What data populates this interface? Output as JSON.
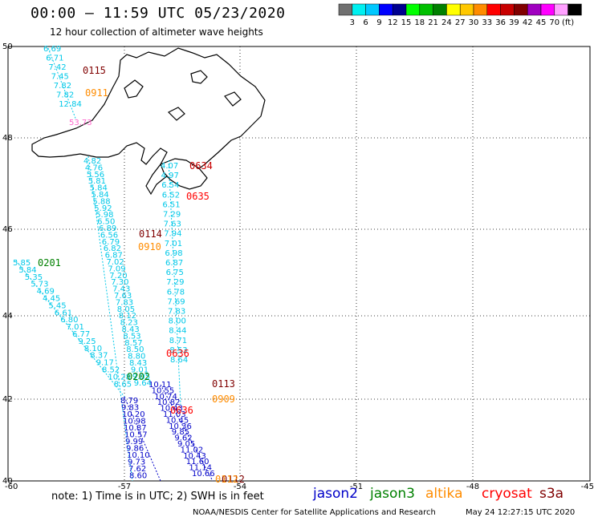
{
  "header": {
    "title": "00:00 – 11:59 UTC 05/23/2020",
    "subtitle": "12 hour collection of altimeter wave heights"
  },
  "color_scale": {
    "colors": [
      "#707070",
      "#00f0f0",
      "#00c8ff",
      "#0000ff",
      "#000090",
      "#00ff00",
      "#00c000",
      "#008000",
      "#ffff00",
      "#ffc800",
      "#ff8c00",
      "#ff0000",
      "#c80000",
      "#800000",
      "#a000c0",
      "#ff00ff",
      "#ffa0ff",
      "#000000"
    ],
    "labels": [
      "3",
      "6",
      "9",
      "12",
      "15",
      "18",
      "21",
      "24",
      "27",
      "30",
      "33",
      "36",
      "39",
      "42",
      "45",
      "70",
      "(ft)"
    ]
  },
  "axes": {
    "lat_labels": [
      "50",
      "48",
      "46",
      "44",
      "42",
      "40"
    ],
    "lon_labels": [
      "-60",
      "-57",
      "-54",
      "-51",
      "-48",
      "-45"
    ]
  },
  "passes": [
    {
      "text": "0115",
      "color": "#800000"
    },
    {
      "text": "0911",
      "color": "#ff8c00"
    },
    {
      "text": "0634",
      "color": "#c80000"
    },
    {
      "text": "0635",
      "color": "#ff0000"
    },
    {
      "text": "0114",
      "color": "#800000"
    },
    {
      "text": "0910",
      "color": "#ff8c00"
    },
    {
      "text": "0201",
      "color": "#008000"
    },
    {
      "text": "0636",
      "color": "#ff0000"
    },
    {
      "text": "0202",
      "color": "#008000"
    },
    {
      "text": "0113",
      "color": "#800000"
    },
    {
      "text": "0909",
      "color": "#ff8c00"
    },
    {
      "text": "0636",
      "color": "#ff0000"
    },
    {
      "text": "0112",
      "color": "#800000"
    },
    {
      "text": "0112",
      "color": "#ff8c00"
    }
  ],
  "wave_labels": {
    "color_cyan": "#00c8e8",
    "color_blue": "#0000c8",
    "color_pink": "#ff66cc",
    "color_yellow": "#e8c800",
    "west_track": [
      "6.69",
      "6.71",
      "7.42",
      "7.45",
      "7.82",
      "7.82",
      "12.84"
    ],
    "pink_label": "53.73",
    "central_track": [
      "4.82",
      "4.76",
      "5.56",
      "5.81",
      "5.84",
      "5.84",
      "5.88",
      "5.92",
      "5.98",
      "6.50",
      "6.89",
      "6.56",
      "6.79",
      "6.82",
      "6.87",
      "7.02",
      "7.09",
      "7.20",
      "7.30",
      "7.43",
      "7.63",
      "7.83",
      "8.05",
      "8.12",
      "8.23",
      "8.43",
      "8.53",
      "8.57",
      "8.50",
      "8.80",
      "8.43",
      "9.01",
      "9.05",
      "9.64"
    ],
    "east_track": [
      "4.07",
      "4.97",
      "6.54",
      "6.52",
      "6.51",
      "7.29",
      "7.63",
      "7.94",
      "7.01",
      "6.98",
      "6.87",
      "6.75",
      "7.29",
      "6.78",
      "7.69",
      "7.83",
      "8.00",
      "8.44",
      "8.71",
      "8.53",
      "8.64"
    ],
    "sw_track": [
      "5.85",
      "5.84",
      "5.35",
      "5.73",
      "4.69",
      "4.45",
      "5.45",
      "6.61",
      "6.80",
      "7.01",
      "6.77",
      "9.25",
      "8.10",
      "8.37",
      "9.17",
      "8.52",
      "10.28",
      "8.65"
    ],
    "blue_a": [
      "8.79",
      "9.83",
      "10.20",
      "10.98",
      "10.87",
      "10.57",
      "9.99",
      "9.86",
      "10.10",
      "9.73",
      "7.62",
      "8.60"
    ],
    "blue_b": [
      "10.11",
      "10.55",
      "10.74",
      "10.82",
      "10.43",
      "11.03",
      "10.45",
      "10.36",
      "9.85",
      "9.62",
      "9.05",
      "11.02",
      "10.43",
      "11.60",
      "11.14",
      "10.66"
    ]
  },
  "satellites": [
    {
      "name": "jason2",
      "color": "#0000c8"
    },
    {
      "name": "jason3",
      "color": "#008000"
    },
    {
      "name": "altika",
      "color": "#ff8c00"
    },
    {
      "name": "cryosat",
      "color": "#ff0000"
    },
    {
      "name": "s3a",
      "color": "#800000"
    }
  ],
  "note": "note: 1) Time is in UTC; 2) SWH is in feet",
  "footer": {
    "credit": "NOAA/NESDIS Center for Satellite Applications and Research",
    "stamp": "May 24 12:27:15 UTC 2020"
  }
}
